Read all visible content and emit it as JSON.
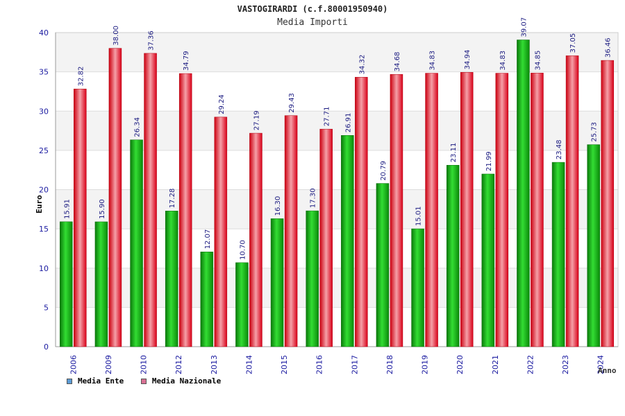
{
  "chart_data": {
    "type": "bar",
    "title": "VASTOGIRARDI (c.f.80001950940)",
    "subtitle": "Media Importi",
    "ylabel": "Euro",
    "xlabel": "Anno",
    "ylim": [
      0,
      40
    ],
    "yticks": [
      0,
      5,
      10,
      15,
      20,
      25,
      30,
      35,
      40
    ],
    "grid": true,
    "legend_position": "bottom-left",
    "categories": [
      "2006",
      "2009",
      "2010",
      "2012",
      "2013",
      "2014",
      "2015",
      "2016",
      "2017",
      "2018",
      "2019",
      "2020",
      "2021",
      "2022",
      "2023",
      "2024"
    ],
    "series": [
      {
        "name": "Media Ente",
        "color": "#1fbf1f",
        "legend_color": "#5b9bd5",
        "values": [
          15.91,
          15.9,
          26.34,
          17.28,
          12.07,
          10.7,
          16.3,
          17.3,
          26.91,
          20.79,
          15.01,
          23.11,
          21.99,
          39.07,
          23.48,
          25.73
        ],
        "labels": [
          "15.91",
          "15.90",
          "26.34",
          "17.28",
          "12.07",
          "10.70",
          "16.30",
          "17.30",
          "26.91",
          "20.79",
          "15.01",
          "23.11",
          "21.99",
          "39.07",
          "23.48",
          "25.73"
        ]
      },
      {
        "name": "Media Nazionale",
        "color": "#e8202a",
        "legend_color": "#d87093",
        "values": [
          32.82,
          38.0,
          37.36,
          34.79,
          29.24,
          27.19,
          29.43,
          27.71,
          34.32,
          34.68,
          34.83,
          34.94,
          34.83,
          34.85,
          37.05,
          36.46
        ],
        "labels": [
          "32.82",
          "38.00",
          "37.36",
          "34.79",
          "29.24",
          "27.19",
          "29.43",
          "27.71",
          "34.32",
          "34.68",
          "34.83",
          "34.94",
          "34.83",
          "34.85",
          "37.05",
          "36.46"
        ]
      }
    ]
  }
}
